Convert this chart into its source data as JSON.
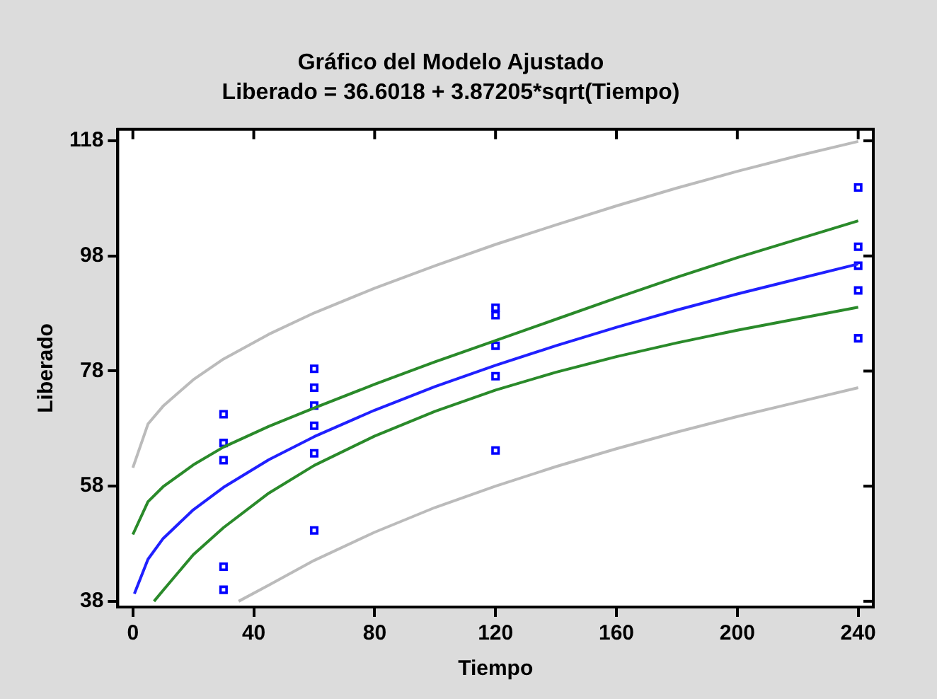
{
  "chart_data": {
    "type": "line",
    "title": "Gráfico del Modelo Ajustado",
    "subtitle": "Liberado = 36.6018 + 3.87205*sqrt(Tiempo)",
    "xlabel": "Tiempo",
    "ylabel": "Liberado",
    "xlim": [
      -5,
      245
    ],
    "xticks": [
      0,
      40,
      80,
      120,
      160,
      200,
      240
    ],
    "ylim": [
      37,
      120
    ],
    "yticks": [
      38,
      58,
      78,
      98,
      118
    ],
    "grid": false,
    "legend": false,
    "series": [
      {
        "type": "line",
        "color": "#bbbbbb",
        "marker": "none",
        "x": [
          0,
          5,
          10,
          20,
          30,
          45,
          60,
          80,
          100,
          120,
          140,
          160,
          180,
          200,
          220,
          240
        ],
        "values": [
          61.2,
          68.8,
          71.9,
          76.5,
          80.1,
          84.4,
          88.1,
          92.4,
          96.3,
          100.0,
          103.4,
          106.7,
          109.8,
          112.7,
          115.4,
          117.9
        ]
      },
      {
        "type": "line",
        "color": "#bbbbbb",
        "marker": "none",
        "x": [
          35,
          45,
          60,
          80,
          100,
          120,
          140,
          160,
          180,
          200,
          220,
          240
        ],
        "values": [
          38,
          40.8,
          45.1,
          50.0,
          54.3,
          58.0,
          61.4,
          64.5,
          67.4,
          70.1,
          72.6,
          75.1
        ]
      },
      {
        "type": "line",
        "color": "#2a8a2a",
        "marker": "none",
        "x": [
          0,
          5,
          10,
          20,
          30,
          45,
          60,
          80,
          100,
          120,
          140,
          160,
          180,
          200,
          220,
          240
        ],
        "values": [
          49.6,
          55.3,
          57.9,
          61.7,
          64.8,
          68.4,
          71.6,
          75.7,
          79.6,
          83.3,
          87.0,
          90.7,
          94.3,
          97.7,
          100.9,
          104.1
        ]
      },
      {
        "type": "line",
        "color": "#2a8a2a",
        "marker": "none",
        "x": [
          7,
          10,
          20,
          30,
          45,
          60,
          80,
          100,
          120,
          140,
          160,
          180,
          200,
          220,
          240
        ],
        "values": [
          38,
          39.9,
          46.1,
          50.8,
          56.8,
          61.6,
          66.7,
          71.0,
          74.7,
          77.8,
          80.5,
          82.9,
          85.1,
          87.1,
          89.1
        ]
      },
      {
        "type": "line",
        "color": "#2020ff",
        "marker": "none",
        "x": [
          0.5,
          5,
          10,
          20,
          30,
          45,
          60,
          80,
          100,
          120,
          140,
          160,
          180,
          200,
          220,
          240
        ],
        "values": [
          39.3,
          45.3,
          48.9,
          53.9,
          57.8,
          62.6,
          66.6,
          71.2,
          75.3,
          79.0,
          82.4,
          85.6,
          88.6,
          91.4,
          94.0,
          96.6
        ]
      },
      {
        "type": "scatter",
        "color": "#0000ff",
        "marker": "square",
        "x": [
          30,
          30,
          30,
          30,
          30,
          60,
          60,
          60,
          60,
          60,
          60,
          120,
          120,
          120,
          120,
          120,
          240,
          240,
          240,
          240,
          240
        ],
        "values": [
          70.5,
          65.5,
          62.5,
          44,
          40,
          78.4,
          75.1,
          72,
          68.5,
          63.7,
          50.3,
          89,
          87.7,
          82.4,
          77.1,
          64.2,
          109.9,
          99.6,
          96.3,
          92,
          83.7
        ]
      }
    ]
  }
}
